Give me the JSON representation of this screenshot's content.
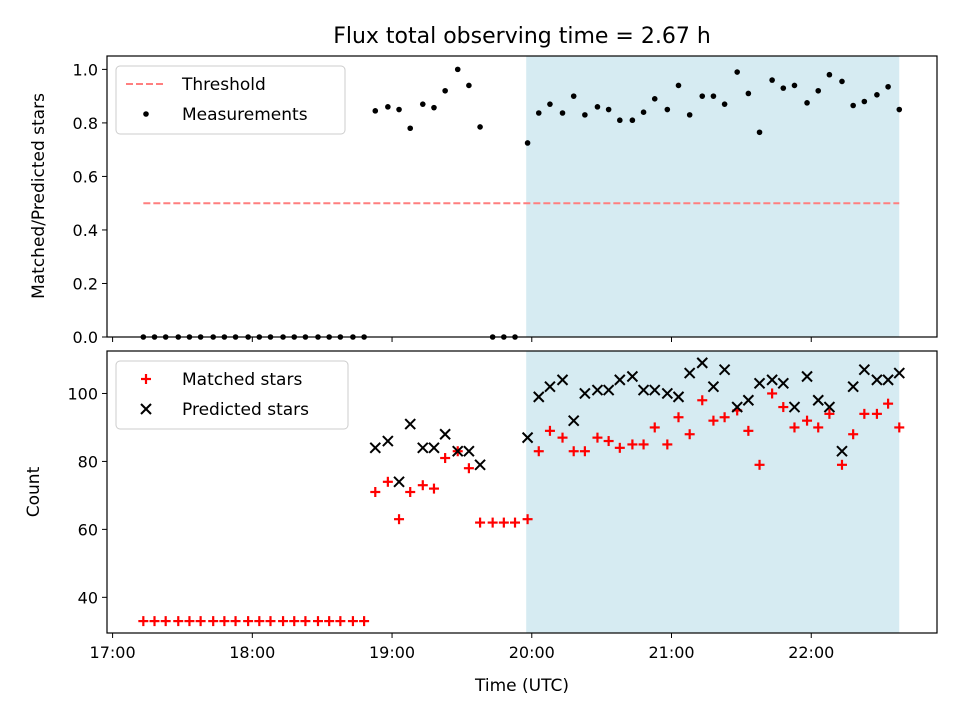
{
  "chart_data": {
    "title": "Flux total observing time = 2.67 h",
    "xlabel": "Time (UTC)",
    "xticks": [
      "17:00",
      "18:00",
      "19:00",
      "20:00",
      "21:00",
      "22:00"
    ],
    "xlim_hours": [
      16.96,
      22.9
    ],
    "shaded_span_hours": [
      19.96,
      22.63
    ],
    "shade_color": "#add8e6",
    "panels": [
      {
        "type": "scatter",
        "ylabel": "Matched/Predicted stars",
        "ylim": [
          0,
          1.05
        ],
        "yticks": [
          "0.0",
          "0.2",
          "0.4",
          "0.6",
          "0.8",
          "1.0"
        ],
        "legend_position": "upper-left",
        "threshold": {
          "name": "Threshold",
          "value": 0.5,
          "x_range_hours": [
            17.22,
            22.63
          ],
          "color": "#ff7f7f"
        },
        "series": [
          {
            "name": "Measurements",
            "color": "#000000",
            "marker": "dot",
            "x": [
              17.22,
              17.3,
              17.38,
              17.47,
              17.55,
              17.63,
              17.72,
              17.8,
              17.88,
              17.97,
              18.05,
              18.13,
              18.22,
              18.3,
              18.38,
              18.47,
              18.55,
              18.63,
              18.72,
              18.8,
              18.88,
              18.97,
              19.05,
              19.13,
              19.22,
              19.3,
              19.38,
              19.47,
              19.55,
              19.63,
              19.72,
              19.8,
              19.88,
              19.97,
              20.05,
              20.13,
              20.22,
              20.3,
              20.38,
              20.47,
              20.55,
              20.63,
              20.72,
              20.8,
              20.88,
              20.97,
              21.05,
              21.13,
              21.22,
              21.3,
              21.38,
              21.47,
              21.55,
              21.63,
              21.72,
              21.8,
              21.88,
              21.97,
              22.05,
              22.13,
              22.22,
              22.3,
              22.38,
              22.47,
              22.55,
              22.63
            ],
            "y": [
              0,
              0,
              0,
              0,
              0,
              0,
              0,
              0,
              0,
              0,
              0,
              0,
              0,
              0,
              0,
              0,
              0,
              0,
              0,
              0,
              0.845,
              0.86,
              0.85,
              0.78,
              0.87,
              0.857,
              0.92,
              1.0,
              0.94,
              0.785,
              0,
              0,
              0,
              0.725,
              0.837,
              0.87,
              0.837,
              0.9,
              0.83,
              0.86,
              0.85,
              0.81,
              0.81,
              0.84,
              0.89,
              0.85,
              0.94,
              0.83,
              0.9,
              0.9,
              0.87,
              0.99,
              0.91,
              0.765,
              0.96,
              0.93,
              0.94,
              0.875,
              0.92,
              0.98,
              0.955,
              0.865,
              0.88,
              0.905,
              0.935,
              0.85
            ]
          }
        ]
      },
      {
        "type": "scatter",
        "ylabel": "Count",
        "ylim": [
          29.5,
          112.5
        ],
        "yticks": [
          "40",
          "60",
          "80",
          "100"
        ],
        "legend_position": "upper-left",
        "series": [
          {
            "name": "Matched stars",
            "color": "#ff0000",
            "marker": "plus",
            "x": [
              17.22,
              17.3,
              17.38,
              17.47,
              17.55,
              17.63,
              17.72,
              17.8,
              17.88,
              17.97,
              18.05,
              18.13,
              18.22,
              18.3,
              18.38,
              18.47,
              18.55,
              18.63,
              18.72,
              18.8,
              18.88,
              18.97,
              19.05,
              19.13,
              19.22,
              19.3,
              19.38,
              19.47,
              19.55,
              19.63,
              19.72,
              19.8,
              19.88,
              19.97,
              20.05,
              20.13,
              20.22,
              20.3,
              20.38,
              20.47,
              20.55,
              20.63,
              20.72,
              20.8,
              20.88,
              20.97,
              21.05,
              21.13,
              21.22,
              21.3,
              21.38,
              21.47,
              21.55,
              21.63,
              21.72,
              21.8,
              21.88,
              21.97,
              22.05,
              22.13,
              22.22,
              22.3,
              22.38,
              22.47,
              22.55,
              22.63
            ],
            "y": [
              33,
              33,
              33,
              33,
              33,
              33,
              33,
              33,
              33,
              33,
              33,
              33,
              33,
              33,
              33,
              33,
              33,
              33,
              33,
              33,
              71,
              74,
              63,
              71,
              73,
              72,
              81,
              83,
              78,
              62,
              62,
              62,
              62,
              63,
              83,
              89,
              87,
              83,
              83,
              87,
              86,
              84,
              85,
              85,
              90,
              85,
              93,
              88,
              98,
              92,
              93,
              95,
              89,
              79,
              100,
              96,
              90,
              92,
              90,
              94,
              79,
              88,
              94,
              94,
              97,
              90
            ]
          },
          {
            "name": "Predicted stars",
            "color": "#000000",
            "marker": "x",
            "x": [
              18.88,
              18.97,
              19.05,
              19.13,
              19.22,
              19.3,
              19.38,
              19.47,
              19.55,
              19.63,
              19.97,
              20.05,
              20.13,
              20.22,
              20.3,
              20.38,
              20.47,
              20.55,
              20.63,
              20.72,
              20.8,
              20.88,
              20.97,
              21.05,
              21.13,
              21.22,
              21.3,
              21.38,
              21.47,
              21.55,
              21.63,
              21.72,
              21.8,
              21.88,
              21.97,
              22.05,
              22.13,
              22.22,
              22.3,
              22.38,
              22.47,
              22.55,
              22.63
            ],
            "y": [
              84,
              86,
              74,
              91,
              84,
              84,
              88,
              83,
              83,
              79,
              87,
              99,
              102,
              104,
              92,
              100,
              101,
              101,
              104,
              105,
              101,
              101,
              100,
              99,
              106,
              109,
              102,
              107,
              96,
              98,
              103,
              104,
              103,
              96,
              105,
              98,
              96,
              83,
              102,
              107,
              104,
              104,
              106
            ]
          }
        ]
      }
    ]
  }
}
